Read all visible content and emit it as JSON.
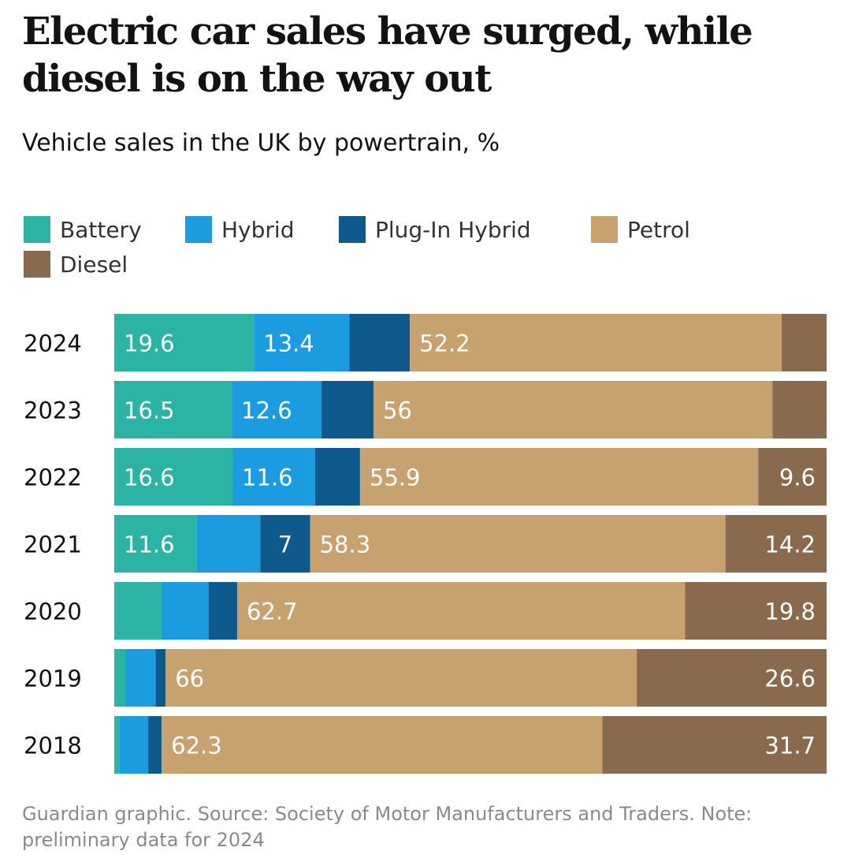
{
  "header": {
    "title": "Electric car sales have surged, while diesel is on the way out",
    "subtitle": "Vehicle sales in the UK by powertrain, %"
  },
  "footer": {
    "source": "Guardian graphic. Source: Society of Motor Manufacturers and Traders. Note: preliminary data for 2024"
  },
  "chart_data": {
    "type": "bar",
    "orientation": "horizontal",
    "stacked": true,
    "title": "Electric car sales have surged, while diesel is on the way out",
    "subtitle": "Vehicle sales in the UK by powertrain, %",
    "xlabel": "",
    "ylabel": "",
    "xlim": [
      0,
      100
    ],
    "legend_position": "top",
    "categories": [
      "2024",
      "2023",
      "2022",
      "2021",
      "2020",
      "2019",
      "2018"
    ],
    "series": [
      {
        "name": "Battery",
        "color": "#2bb3a4",
        "values": [
          19.6,
          16.5,
          16.6,
          11.6,
          6.6,
          1.6,
          0.7
        ],
        "labels": [
          "19.6",
          "16.5",
          "16.6",
          "11.6",
          "",
          "",
          ""
        ]
      },
      {
        "name": "Hybrid",
        "color": "#1c9ce0",
        "values": [
          13.4,
          12.6,
          11.6,
          8.9,
          6.6,
          4.2,
          4.1
        ],
        "labels": [
          "13.4",
          "12.6",
          "11.6",
          "",
          "",
          "",
          ""
        ]
      },
      {
        "name": "Plug-In Hybrid",
        "color": "#0e5a8c",
        "values": [
          8.5,
          7.3,
          6.3,
          7.0,
          4.0,
          1.4,
          1.9
        ],
        "labels": [
          "",
          "",
          "",
          "7",
          "",
          "",
          ""
        ]
      },
      {
        "name": "Petrol",
        "color": "#c8a26e",
        "values": [
          52.2,
          56.0,
          55.9,
          58.3,
          62.7,
          66.0,
          62.3
        ],
        "labels": [
          "52.2",
          "56",
          "55.9",
          "58.3",
          "62.7",
          "66",
          "62.3"
        ]
      },
      {
        "name": "Diesel",
        "color": "#8a6a4e",
        "values": [
          6.3,
          7.6,
          9.6,
          14.2,
          19.8,
          26.6,
          31.7
        ],
        "labels": [
          "",
          "",
          "9.6",
          "14.2",
          "19.8",
          "26.6",
          "31.7"
        ]
      }
    ]
  }
}
